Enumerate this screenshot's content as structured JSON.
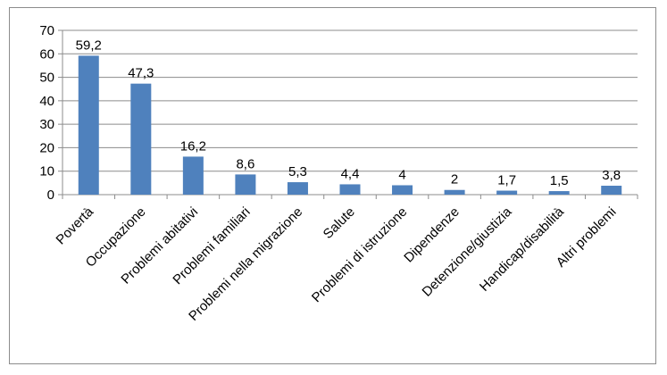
{
  "chart_data": {
    "type": "bar",
    "title": "",
    "xlabel": "",
    "ylabel": "",
    "ylim": [
      0,
      70
    ],
    "yticks": [
      0,
      10,
      20,
      30,
      40,
      50,
      60,
      70
    ],
    "grid": true,
    "legend": "none",
    "bar_color": "#4f81bd",
    "categories": [
      "Povertà",
      "Occupazione",
      "Problemi abitativi",
      "Problemi familiari",
      "Problemi nella migrazione",
      "Salute",
      "Problemi di istruzione",
      "Dipendenze",
      "Detenzione/giustizia",
      "Handicap/disabilità",
      "Altri problemi"
    ],
    "values": [
      59.2,
      47.3,
      16.2,
      8.6,
      5.3,
      4.4,
      4,
      2,
      1.7,
      1.5,
      3.8
    ],
    "data_labels": [
      "59,2",
      "47,3",
      "16,2",
      "8,6",
      "5,3",
      "4,4",
      "4",
      "2",
      "1,7",
      "1,5",
      "3,8"
    ]
  }
}
